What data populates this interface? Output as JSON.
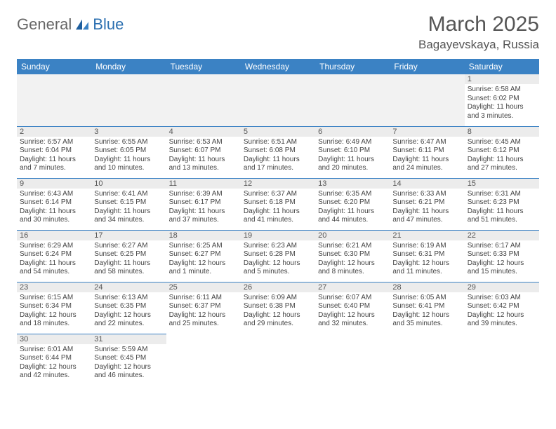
{
  "logo": {
    "part1": "General",
    "part2": "Blue"
  },
  "title": {
    "month": "March 2025",
    "location": "Bagayevskaya, Russia"
  },
  "weekdays": [
    "Sunday",
    "Monday",
    "Tuesday",
    "Wednesday",
    "Thursday",
    "Friday",
    "Saturday"
  ],
  "colors": {
    "header_bg": "#3b82c4",
    "header_fg": "#ffffff",
    "border": "#3b82c4",
    "daynum_bg": "#ececec",
    "blank_bg": "#f2f2f2"
  },
  "weeks": [
    [
      null,
      null,
      null,
      null,
      null,
      null,
      {
        "n": "1",
        "sr": "6:58 AM",
        "ss": "6:02 PM",
        "dl": "11 hours and 3 minutes."
      }
    ],
    [
      {
        "n": "2",
        "sr": "6:57 AM",
        "ss": "6:04 PM",
        "dl": "11 hours and 7 minutes."
      },
      {
        "n": "3",
        "sr": "6:55 AM",
        "ss": "6:05 PM",
        "dl": "11 hours and 10 minutes."
      },
      {
        "n": "4",
        "sr": "6:53 AM",
        "ss": "6:07 PM",
        "dl": "11 hours and 13 minutes."
      },
      {
        "n": "5",
        "sr": "6:51 AM",
        "ss": "6:08 PM",
        "dl": "11 hours and 17 minutes."
      },
      {
        "n": "6",
        "sr": "6:49 AM",
        "ss": "6:10 PM",
        "dl": "11 hours and 20 minutes."
      },
      {
        "n": "7",
        "sr": "6:47 AM",
        "ss": "6:11 PM",
        "dl": "11 hours and 24 minutes."
      },
      {
        "n": "8",
        "sr": "6:45 AM",
        "ss": "6:12 PM",
        "dl": "11 hours and 27 minutes."
      }
    ],
    [
      {
        "n": "9",
        "sr": "6:43 AM",
        "ss": "6:14 PM",
        "dl": "11 hours and 30 minutes."
      },
      {
        "n": "10",
        "sr": "6:41 AM",
        "ss": "6:15 PM",
        "dl": "11 hours and 34 minutes."
      },
      {
        "n": "11",
        "sr": "6:39 AM",
        "ss": "6:17 PM",
        "dl": "11 hours and 37 minutes."
      },
      {
        "n": "12",
        "sr": "6:37 AM",
        "ss": "6:18 PM",
        "dl": "11 hours and 41 minutes."
      },
      {
        "n": "13",
        "sr": "6:35 AM",
        "ss": "6:20 PM",
        "dl": "11 hours and 44 minutes."
      },
      {
        "n": "14",
        "sr": "6:33 AM",
        "ss": "6:21 PM",
        "dl": "11 hours and 47 minutes."
      },
      {
        "n": "15",
        "sr": "6:31 AM",
        "ss": "6:23 PM",
        "dl": "11 hours and 51 minutes."
      }
    ],
    [
      {
        "n": "16",
        "sr": "6:29 AM",
        "ss": "6:24 PM",
        "dl": "11 hours and 54 minutes."
      },
      {
        "n": "17",
        "sr": "6:27 AM",
        "ss": "6:25 PM",
        "dl": "11 hours and 58 minutes."
      },
      {
        "n": "18",
        "sr": "6:25 AM",
        "ss": "6:27 PM",
        "dl": "12 hours and 1 minute."
      },
      {
        "n": "19",
        "sr": "6:23 AM",
        "ss": "6:28 PM",
        "dl": "12 hours and 5 minutes."
      },
      {
        "n": "20",
        "sr": "6:21 AM",
        "ss": "6:30 PM",
        "dl": "12 hours and 8 minutes."
      },
      {
        "n": "21",
        "sr": "6:19 AM",
        "ss": "6:31 PM",
        "dl": "12 hours and 11 minutes."
      },
      {
        "n": "22",
        "sr": "6:17 AM",
        "ss": "6:33 PM",
        "dl": "12 hours and 15 minutes."
      }
    ],
    [
      {
        "n": "23",
        "sr": "6:15 AM",
        "ss": "6:34 PM",
        "dl": "12 hours and 18 minutes."
      },
      {
        "n": "24",
        "sr": "6:13 AM",
        "ss": "6:35 PM",
        "dl": "12 hours and 22 minutes."
      },
      {
        "n": "25",
        "sr": "6:11 AM",
        "ss": "6:37 PM",
        "dl": "12 hours and 25 minutes."
      },
      {
        "n": "26",
        "sr": "6:09 AM",
        "ss": "6:38 PM",
        "dl": "12 hours and 29 minutes."
      },
      {
        "n": "27",
        "sr": "6:07 AM",
        "ss": "6:40 PM",
        "dl": "12 hours and 32 minutes."
      },
      {
        "n": "28",
        "sr": "6:05 AM",
        "ss": "6:41 PM",
        "dl": "12 hours and 35 minutes."
      },
      {
        "n": "29",
        "sr": "6:03 AM",
        "ss": "6:42 PM",
        "dl": "12 hours and 39 minutes."
      }
    ],
    [
      {
        "n": "30",
        "sr": "6:01 AM",
        "ss": "6:44 PM",
        "dl": "12 hours and 42 minutes."
      },
      {
        "n": "31",
        "sr": "5:59 AM",
        "ss": "6:45 PM",
        "dl": "12 hours and 46 minutes."
      },
      null,
      null,
      null,
      null,
      null
    ]
  ],
  "labels": {
    "sunrise": "Sunrise: ",
    "sunset": "Sunset: ",
    "daylight": "Daylight: "
  }
}
